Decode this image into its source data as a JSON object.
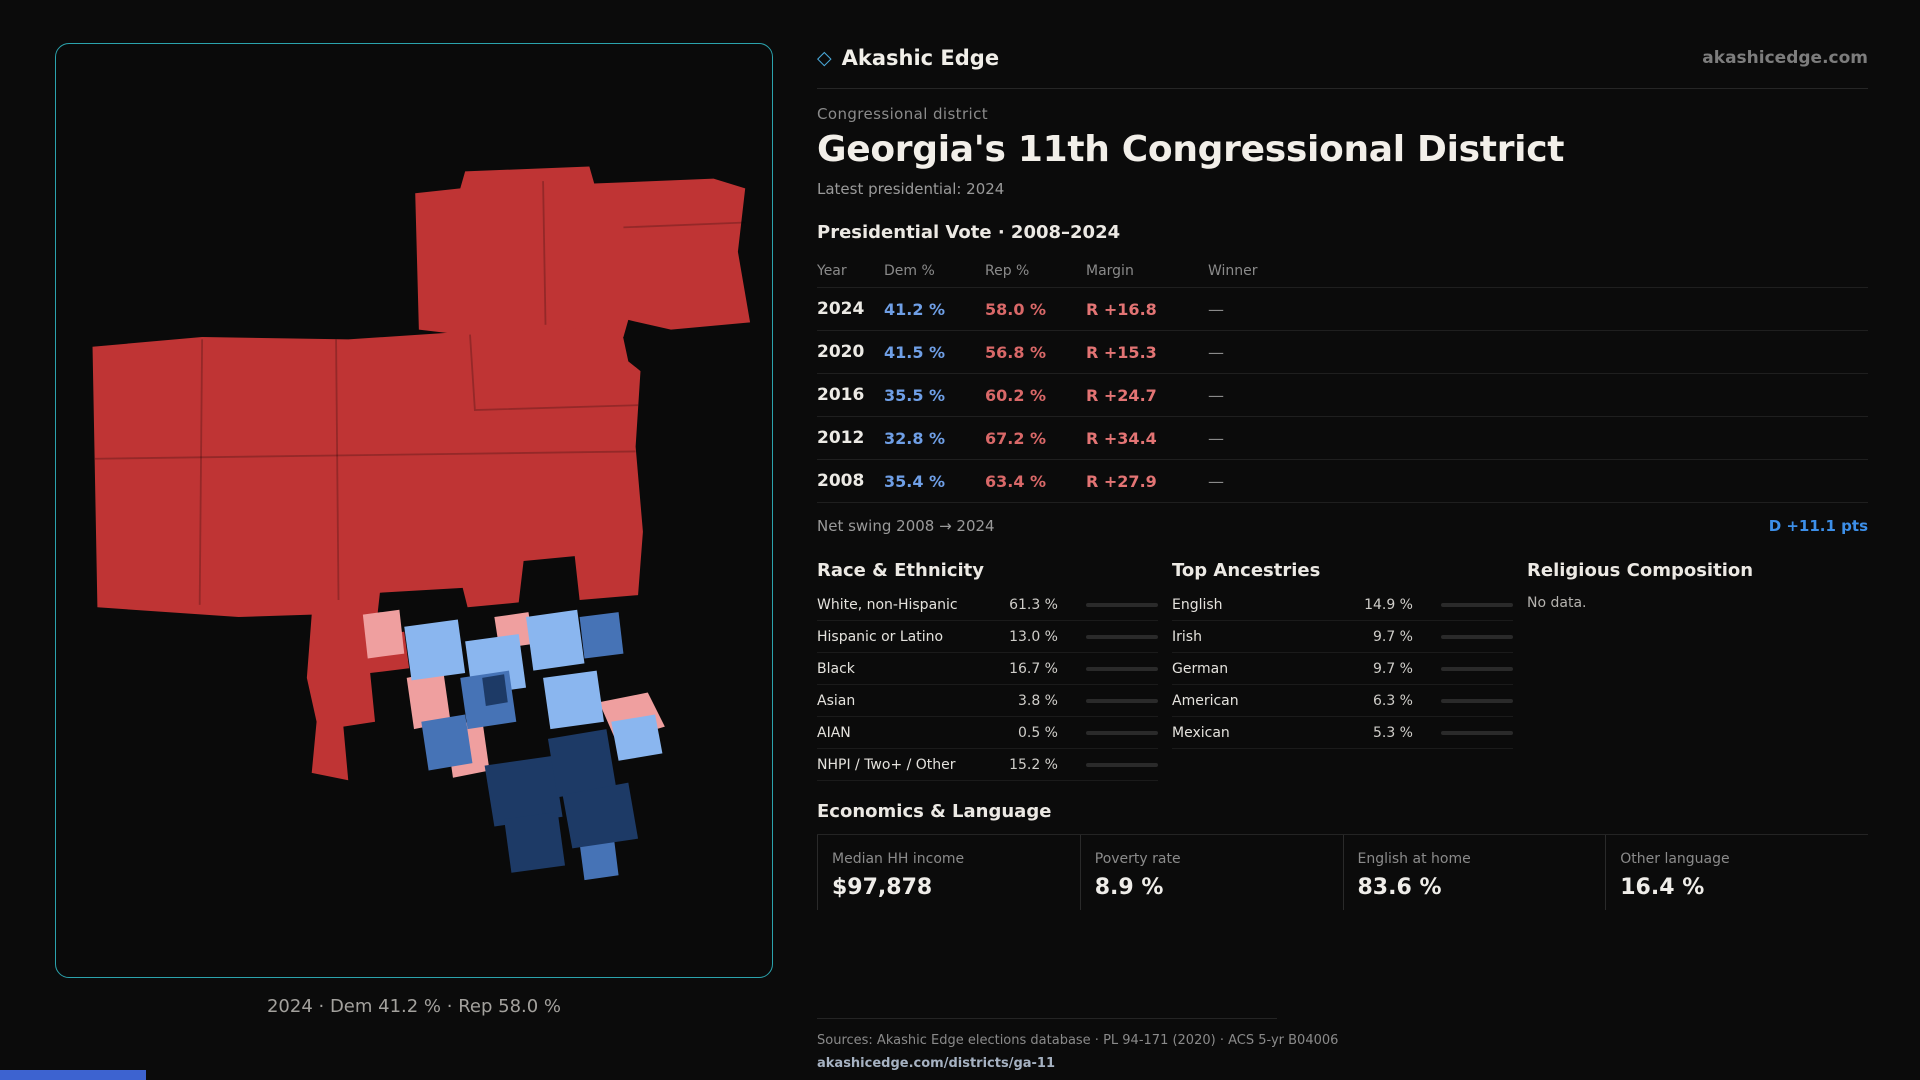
{
  "brand": {
    "icon": "diamond-icon",
    "icon_glyph": "◇",
    "name": "Akashic Edge",
    "domain": "akashicedge.com"
  },
  "page": {
    "kicker": "Congressional district",
    "title": "Georgia's 11th Congressional District",
    "subtitle": "Latest presidential: 2024"
  },
  "map": {
    "caption": "2024 · Dem 41.2 % · Rep 58.0 %",
    "colors": {
      "republican": "#bf3434",
      "lean_republican": "#ef9f9f",
      "light_democrat": "#8ab6ef",
      "democrat": "#4673b6",
      "strong_democrat": "#1d3a66",
      "panel_border": "#2ba3ad"
    }
  },
  "vote_table": {
    "title": "Presidential Vote · 2008–2024",
    "columns": {
      "year": "Year",
      "dem": "Dem %",
      "rep": "Rep %",
      "margin": "Margin",
      "winner": "Winner"
    },
    "rows": [
      {
        "year": "2024",
        "dem": "41.2 %",
        "rep": "58.0 %",
        "margin": "R +16.8",
        "winner": "—"
      },
      {
        "year": "2020",
        "dem": "41.5 %",
        "rep": "56.8 %",
        "margin": "R +15.3",
        "winner": "—"
      },
      {
        "year": "2016",
        "dem": "35.5 %",
        "rep": "60.2 %",
        "margin": "R +24.7",
        "winner": "—"
      },
      {
        "year": "2012",
        "dem": "32.8 %",
        "rep": "67.2 %",
        "margin": "R +34.4",
        "winner": "—"
      },
      {
        "year": "2008",
        "dem": "35.4 %",
        "rep": "63.4 %",
        "margin": "R +27.9",
        "winner": "—"
      }
    ]
  },
  "net_swing": {
    "label": "Net swing 2008 → 2024",
    "value": "D +11.1 pts",
    "value_color": "#3d8fe8"
  },
  "sections": {
    "race": {
      "title": "Race & Ethnicity",
      "rows": [
        {
          "label": "White, non-Hispanic",
          "value": "61.3 %",
          "pct": 61.3
        },
        {
          "label": "Hispanic or Latino",
          "value": "13.0 %",
          "pct": 13.0
        },
        {
          "label": "Black",
          "value": "16.7 %",
          "pct": 16.7
        },
        {
          "label": "Asian",
          "value": "3.8 %",
          "pct": 3.8
        },
        {
          "label": "AIAN",
          "value": "0.5 %",
          "pct": 0.5
        },
        {
          "label": "NHPI / Two+ / Other",
          "value": "15.2 %",
          "pct": 15.2
        }
      ]
    },
    "ancestries": {
      "title": "Top Ancestries",
      "rows": [
        {
          "label": "English",
          "value": "14.9 %",
          "pct": 14.9
        },
        {
          "label": "Irish",
          "value": "9.7 %",
          "pct": 9.7
        },
        {
          "label": "German",
          "value": "9.7 %",
          "pct": 9.7
        },
        {
          "label": "American",
          "value": "6.3 %",
          "pct": 6.3
        },
        {
          "label": "Mexican",
          "value": "5.3 %",
          "pct": 5.3
        }
      ]
    },
    "religion": {
      "title": "Religious Composition",
      "empty": "No data."
    },
    "economics": {
      "title": "Economics & Language",
      "stats": [
        {
          "label": "Median HH income",
          "value": "$97,878"
        },
        {
          "label": "Poverty rate",
          "value": "8.9 %"
        },
        {
          "label": "English at home",
          "value": "83.6 %"
        },
        {
          "label": "Other language",
          "value": "16.4 %"
        }
      ]
    }
  },
  "footer": {
    "sources": "Sources: Akashic Edge elections database · PL 94-171 (2020) · ACS 5-yr B04006",
    "link": "akashicedge.com/districts/ga-11"
  }
}
